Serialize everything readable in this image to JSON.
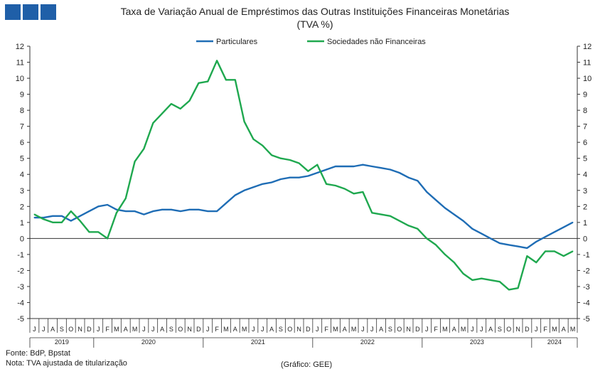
{
  "header": {
    "logo_label": "BdP"
  },
  "chart_data": {
    "type": "line",
    "title": "Taxa de Variação Anual de Empréstimos das Outras Instituições Financeiras Monetárias",
    "subtitle": "(TVA %)",
    "xlabel": "",
    "ylabel": "",
    "ylim": [
      -5,
      12
    ],
    "yticks": [
      12,
      11,
      10,
      9,
      8,
      7,
      6,
      5,
      4,
      3,
      2,
      1,
      0,
      -1,
      -2,
      -3,
      -4,
      -5
    ],
    "grid": false,
    "legend_placement": "top-center",
    "months": [
      "J",
      "J",
      "A",
      "S",
      "O",
      "N",
      "D",
      "J",
      "F",
      "M",
      "A",
      "M",
      "J",
      "J",
      "A",
      "S",
      "O",
      "N",
      "D",
      "J",
      "F",
      "M",
      "A",
      "M",
      "J",
      "J",
      "A",
      "S",
      "O",
      "N",
      "D",
      "J",
      "F",
      "M",
      "A",
      "M",
      "J",
      "J",
      "A",
      "S",
      "O",
      "N",
      "D",
      "J",
      "F",
      "M",
      "A",
      "M",
      "J",
      "J",
      "A",
      "S",
      "O",
      "N",
      "D",
      "J",
      "F",
      "M",
      "A",
      "M"
    ],
    "years": [
      {
        "label": "2019",
        "months": 7
      },
      {
        "label": "2020",
        "months": 12
      },
      {
        "label": "2021",
        "months": 12
      },
      {
        "label": "2022",
        "months": 12
      },
      {
        "label": "2023",
        "months": 12
      },
      {
        "label": "2024",
        "months": 5
      }
    ],
    "series": [
      {
        "name": "Particulares",
        "color": "#1f6db5",
        "values": [
          1.3,
          1.3,
          1.4,
          1.4,
          1.1,
          1.4,
          1.7,
          2.0,
          2.1,
          1.8,
          1.7,
          1.7,
          1.5,
          1.7,
          1.8,
          1.8,
          1.7,
          1.8,
          1.8,
          1.7,
          1.7,
          2.2,
          2.7,
          3.0,
          3.2,
          3.4,
          3.5,
          3.7,
          3.8,
          3.8,
          3.9,
          4.1,
          4.3,
          4.5,
          4.5,
          4.5,
          4.6,
          4.5,
          4.4,
          4.3,
          4.1,
          3.8,
          3.6,
          2.9,
          2.4,
          1.9,
          1.5,
          1.1,
          0.6,
          0.3,
          0.0,
          -0.3,
          -0.4,
          -0.5,
          -0.6,
          -0.2,
          0.1,
          0.4,
          0.7,
          1.0
        ]
      },
      {
        "name": "Sociedades não Financeiras",
        "color": "#1fa84f",
        "values": [
          1.5,
          1.2,
          1.0,
          1.0,
          1.7,
          1.1,
          0.4,
          0.4,
          0.0,
          1.6,
          2.5,
          4.8,
          5.6,
          7.2,
          7.8,
          8.4,
          8.1,
          8.6,
          9.7,
          9.8,
          11.1,
          9.9,
          9.9,
          7.3,
          6.2,
          5.8,
          5.2,
          5.0,
          4.9,
          4.7,
          4.2,
          4.6,
          3.4,
          3.3,
          3.1,
          2.8,
          2.9,
          1.6,
          1.5,
          1.4,
          1.1,
          0.8,
          0.6,
          0.0,
          -0.4,
          -1.0,
          -1.5,
          -2.2,
          -2.6,
          -2.5,
          -2.6,
          -2.7,
          -3.2,
          -3.1,
          -1.1,
          -1.5,
          -0.8,
          -0.8,
          -1.1,
          -0.8
        ]
      }
    ]
  },
  "footer": {
    "source": "Fonte: BdP, Bpstat",
    "note": "Nota: TVA ajustada de titularização",
    "credit": "(Gráfico: GEE)"
  }
}
